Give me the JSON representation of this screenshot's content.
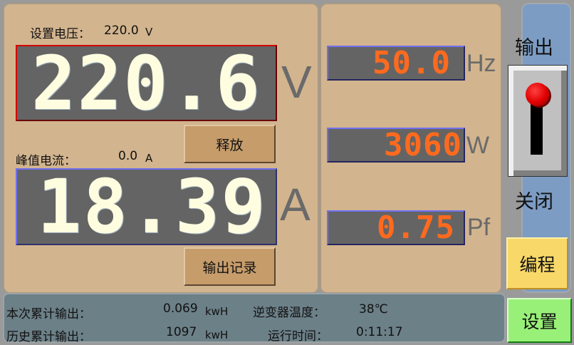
{
  "voltage": {
    "set_label": "设置电压：",
    "set_value": "220.0",
    "set_unit": "V",
    "reading": "220.6",
    "unit": "V"
  },
  "current": {
    "peak_label": "峰值电流：",
    "peak_value": "0.0",
    "peak_unit": "A",
    "reading": "18.39",
    "unit": "A"
  },
  "buttons": {
    "release": "释放",
    "output_record": "输出记录",
    "program": "编程",
    "settings": "设置"
  },
  "meters": [
    {
      "value": "50.0",
      "unit": "Hz"
    },
    {
      "value": "3060",
      "unit": "W"
    },
    {
      "value": "0.75",
      "unit": "Pf"
    }
  ],
  "output_switch": {
    "title": "输出",
    "state": "关闭",
    "on": false
  },
  "status": {
    "session_output_label": "本次累计输出：",
    "session_output_value": "0.069",
    "session_output_unit": "kwH",
    "total_output_label": "历史累计输出：",
    "total_output_value": "1097",
    "total_output_unit": "kwH",
    "inverter_temp_label": "逆变器温度：",
    "inverter_temp_value": "38℃",
    "runtime_label": "运行时间：",
    "runtime_value": "0:11:17"
  },
  "colors": {
    "main_digits": "#fffde0",
    "meter_digits": "#ff6a1e",
    "display_bg": "#646464",
    "voltage_border": "#d40000",
    "current_border": "#6a6ae0"
  }
}
